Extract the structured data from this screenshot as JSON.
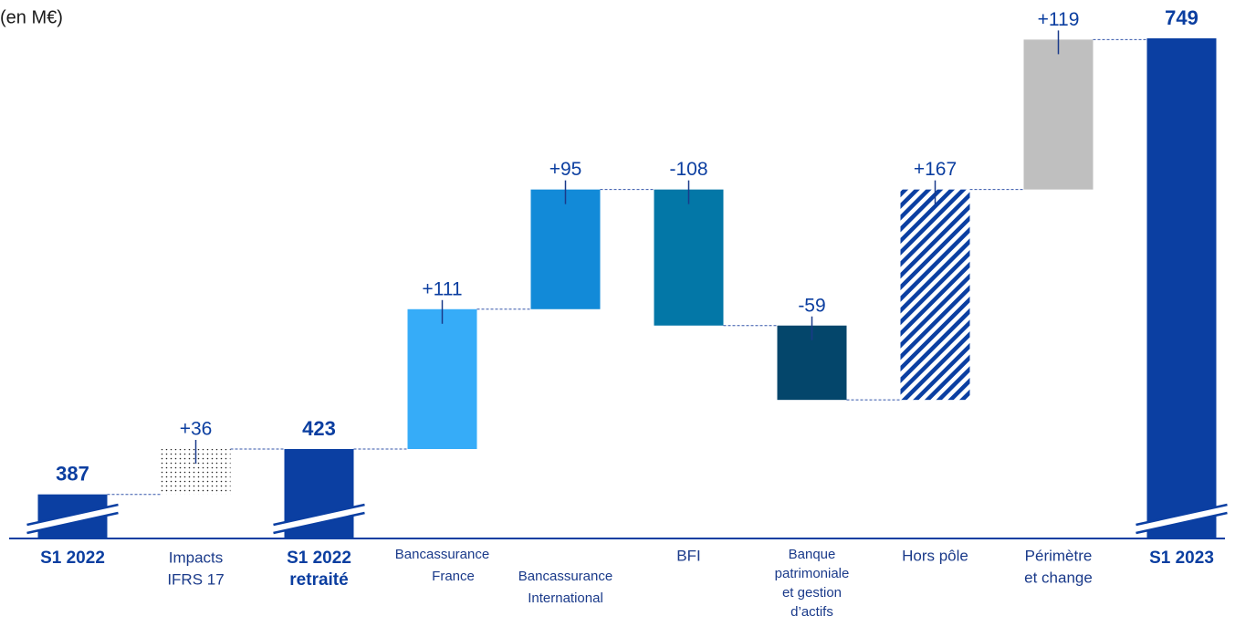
{
  "chart_data": {
    "type": "waterfall",
    "annotation": "(en M€)",
    "categories": [
      [
        "S1 2022"
      ],
      [
        "Impacts",
        "IFRS 17"
      ],
      [
        "S1 2022",
        "retraité"
      ],
      [
        "Bancassurance",
        "France"
      ],
      [
        "Bancassurance",
        "International"
      ],
      [
        "BFI"
      ],
      [
        "Banque",
        "patrimoniale",
        "et gestion",
        "d’actifs"
      ],
      [
        "Hors pôle"
      ],
      [
        "Périmètre",
        "et change"
      ],
      [
        "S1 2023"
      ]
    ],
    "measures": [
      "absolute",
      "relative",
      "absolute",
      "relative",
      "relative",
      "relative",
      "relative",
      "relative",
      "relative",
      "absolute"
    ],
    "values": [
      387,
      36,
      423,
      111,
      95,
      -108,
      -59,
      167,
      119,
      749
    ],
    "value_labels": [
      "387",
      "+36",
      "423",
      "+111",
      "+95",
      "-108",
      "-59",
      "+167",
      "+119",
      "749"
    ],
    "colors": [
      "#0b3fa2",
      "#ffffff",
      "#0b3fa2",
      "#36acf8",
      "#128ad8",
      "#0377a7",
      "#04466b",
      "#0b3fa2",
      "#bfbfbf",
      "#0b3fa2"
    ],
    "patterns": [
      null,
      "dots",
      null,
      null,
      null,
      null,
      null,
      "hatch",
      null,
      null
    ],
    "ylim": [
      352,
      749
    ]
  }
}
